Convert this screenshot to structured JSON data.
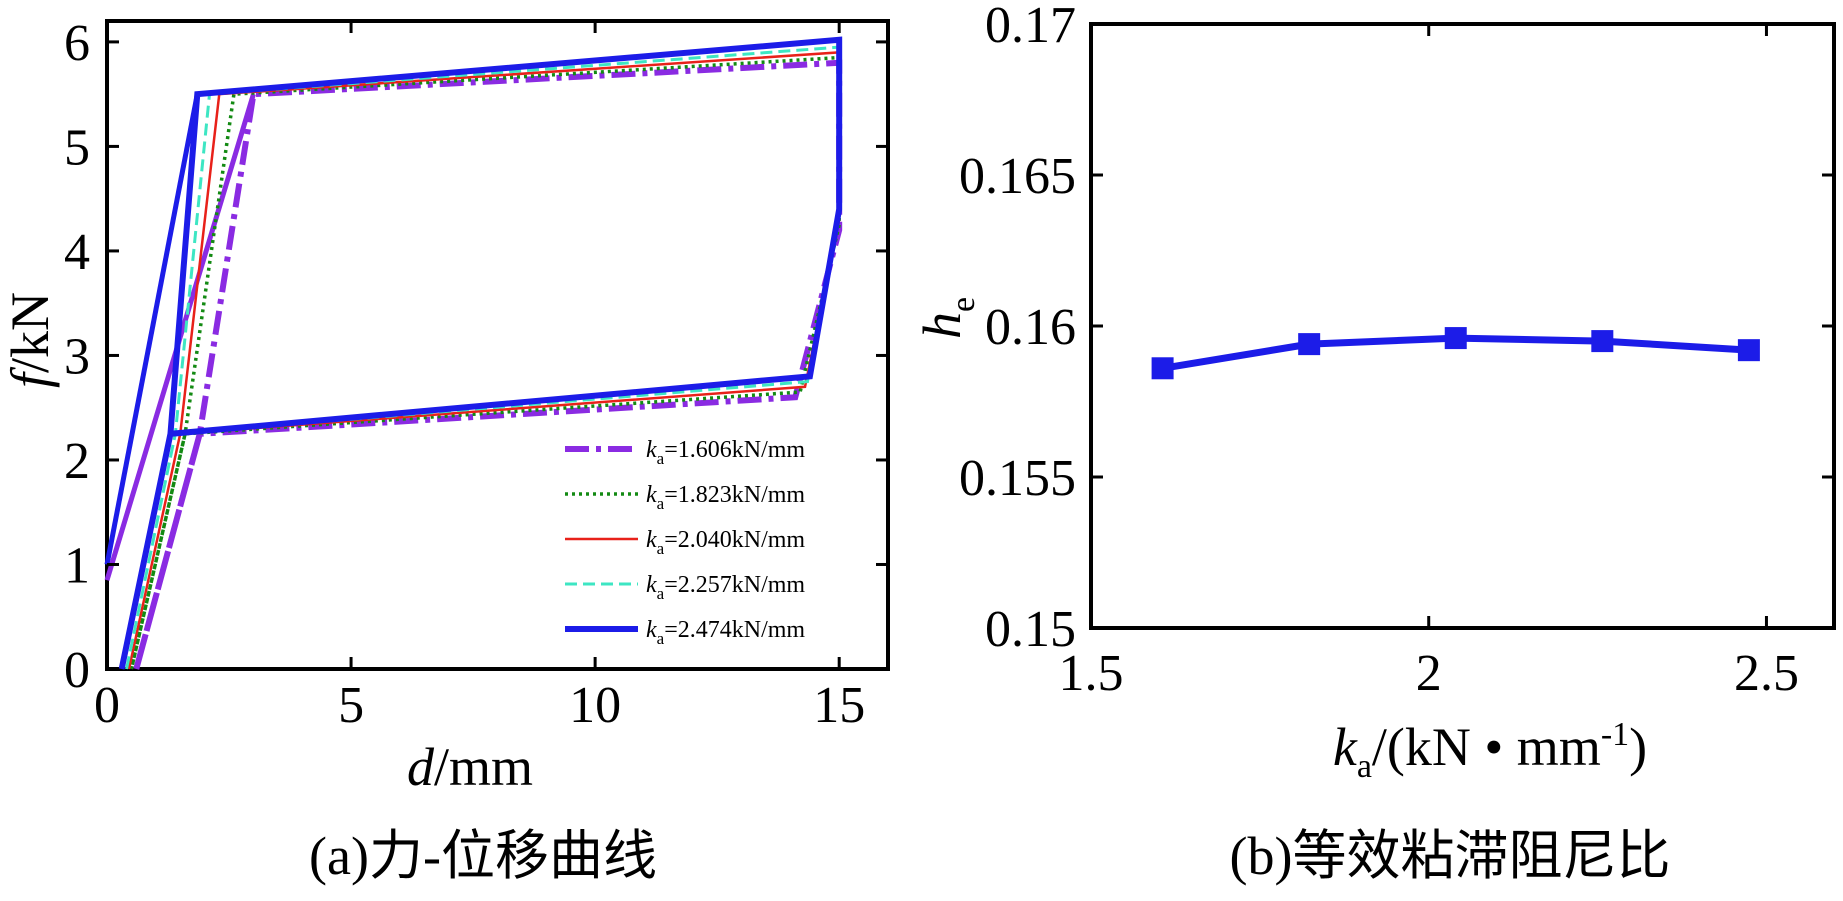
{
  "chart_data": [
    {
      "type": "line",
      "caption": "(a)力-位移曲线",
      "xlabel": {
        "var": "d",
        "unit": "/mm"
      },
      "ylabel": {
        "var": "f",
        "unit": "/kN"
      },
      "xlim": [
        0,
        16
      ],
      "ylim": [
        0,
        6.2
      ],
      "xticks": [
        0,
        5,
        10,
        15
      ],
      "yticks": [
        0,
        1,
        2,
        3,
        4,
        5,
        6
      ],
      "grid": false,
      "legend_position": "bottom-right",
      "series": [
        {
          "name": "=1.606kN/mm",
          "label_var": "k",
          "label_sub": "a",
          "color": "#8a2be2",
          "dash": "24 7 5 7",
          "width": 6,
          "x": [
            0.6,
            1.9,
            3.0,
            15.0,
            15.0,
            14.1,
            1.9,
            0.6
          ],
          "y": [
            0,
            2.25,
            5.5,
            5.8,
            4.2,
            2.6,
            2.25,
            0
          ]
        },
        {
          "name": "=1.823kN/mm",
          "label_var": "k",
          "label_sub": "a",
          "color": "#138a13",
          "dash": "3 4",
          "width": 3.5,
          "x": [
            0.5,
            1.6,
            2.6,
            15.0,
            15.0,
            14.2,
            1.6,
            0.5
          ],
          "y": [
            0,
            2.25,
            5.5,
            5.85,
            4.25,
            2.65,
            2.25,
            0
          ]
        },
        {
          "name": "=2.040kN/mm",
          "label_var": "k",
          "label_sub": "a",
          "color": "#e8211a",
          "dash": "",
          "width": 2.5,
          "x": [
            0.45,
            1.5,
            2.3,
            15.0,
            15.0,
            14.3,
            1.5,
            0.45
          ],
          "y": [
            0,
            2.25,
            5.5,
            5.9,
            4.3,
            2.7,
            2.25,
            0
          ]
        },
        {
          "name": "=2.257kN/mm",
          "label_var": "k",
          "label_sub": "a",
          "color": "#3de6c3",
          "dash": "12 6",
          "width": 3,
          "x": [
            0.4,
            1.4,
            2.1,
            15.0,
            15.0,
            14.35,
            1.4,
            0.4
          ],
          "y": [
            0,
            2.25,
            5.5,
            5.95,
            4.35,
            2.75,
            2.25,
            0
          ]
        },
        {
          "name": "=2.474kN/mm",
          "label_var": "k",
          "label_sub": "a",
          "color": "#1c1ce8",
          "dash": "",
          "width": 6,
          "x": [
            0.3,
            1.3,
            1.85,
            15.0,
            15.0,
            14.4,
            1.3,
            0.3
          ],
          "y": [
            0,
            2.25,
            5.5,
            6.02,
            4.4,
            2.8,
            2.25,
            0
          ]
        }
      ],
      "extra_segments": [
        {
          "color": "#1c1ce8",
          "width": 5,
          "x": [
            0,
            1.85
          ],
          "y": [
            1.0,
            5.5
          ]
        },
        {
          "color": "#8a2be2",
          "width": 5,
          "x": [
            0,
            3.0
          ],
          "y": [
            0.85,
            5.5
          ]
        }
      ]
    },
    {
      "type": "line",
      "caption": "(b)等效粘滞阻尼比",
      "xlabel": {
        "var": "k",
        "sub": "a",
        "rest": "/(kN • mm",
        "sup": "-1",
        "close": ")"
      },
      "ylabel": {
        "var": "h",
        "sub": "e"
      },
      "xlim": [
        1.5,
        2.6
      ],
      "ylim": [
        0.15,
        0.17
      ],
      "xticks": [
        1.5,
        2,
        2.5
      ],
      "yticks": [
        0.15,
        0.155,
        0.16,
        0.165,
        0.17
      ],
      "xtick_labels": [
        "1.5",
        "2",
        "2.5"
      ],
      "ytick_labels": [
        "0.15",
        "0.155",
        "0.16",
        "0.165",
        "0.17"
      ],
      "grid": false,
      "series": [
        {
          "color": "#1c1ce8",
          "width": 7,
          "marker": "square",
          "x": [
            1.606,
            1.823,
            2.04,
            2.257,
            2.474
          ],
          "y": [
            0.1586,
            0.1594,
            0.1596,
            0.1595,
            0.1592
          ]
        }
      ]
    }
  ]
}
